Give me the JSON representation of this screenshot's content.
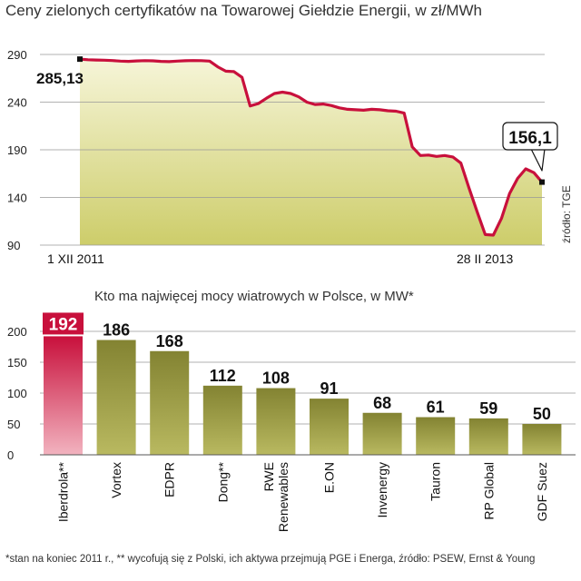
{
  "chart_data": [
    {
      "type": "area",
      "title": "Ceny zielonych certyfikatów na Towarowej Giełdzie Energii, w zł/MWh",
      "ylim": [
        90,
        290
      ],
      "yticks": [
        90,
        140,
        190,
        240,
        290
      ],
      "x_labels": {
        "start": "1 XII 2011",
        "end": "28 II 2013"
      },
      "source": "źródło: TGE",
      "start_value": 285.13,
      "end_value": 156.1,
      "start_label": "285,13",
      "end_label": "156,1",
      "values": [
        285.13,
        284.5,
        284.2,
        284.0,
        283.6,
        283.0,
        282.8,
        283.2,
        283.5,
        283.3,
        282.8,
        282.5,
        283.0,
        283.4,
        283.6,
        283.5,
        283.0,
        277.0,
        272.5,
        272.0,
        266.0,
        236.0,
        238.5,
        244.0,
        249.0,
        250.5,
        249.0,
        245.5,
        240.0,
        237.5,
        238.0,
        236.5,
        234.0,
        232.5,
        232.0,
        231.5,
        232.5,
        232.0,
        231.0,
        230.5,
        228.5,
        193.0,
        184.0,
        184.5,
        183.0,
        184.0,
        182.5,
        176.0,
        150.0,
        125.0,
        101.0,
        100.5,
        118.0,
        144.0,
        160.0,
        170.0,
        166.0,
        156.1
      ],
      "colors": {
        "line": "#c8103c",
        "fill_top": "#f4f2cf",
        "fill_bottom": "#cfcf6e"
      }
    },
    {
      "type": "bar",
      "title": "Kto ma najwięcej mocy wiatrowych w Polsce, w MW*",
      "ylim": [
        0,
        200
      ],
      "yticks": [
        0,
        50,
        100,
        150,
        200
      ],
      "categories": [
        "Iberdrola**",
        "Vortex",
        "EDPR",
        "Dong**",
        "RWE Renewables",
        "E.ON",
        "Invenergy",
        "Tauron",
        "RP Global",
        "GDF Suez"
      ],
      "category_lines": [
        [
          "Iberdrola**"
        ],
        [
          "Vortex"
        ],
        [
          "EDPR"
        ],
        [
          "Dong**"
        ],
        [
          "RWE",
          "Renewables"
        ],
        [
          "E.ON"
        ],
        [
          "Invenergy"
        ],
        [
          "Tauron"
        ],
        [
          "RP Global"
        ],
        [
          "GDF Suez"
        ]
      ],
      "values": [
        192,
        186,
        168,
        112,
        108,
        91,
        68,
        61,
        59,
        50
      ],
      "highlight_index": 0,
      "colors": {
        "bar": "#8a8a3a",
        "bar_light": "#b4b45a",
        "highlight": "#c8103c",
        "highlight_light": "#f0a8b4"
      }
    }
  ],
  "footnote": "*stan na koniec 2011 r., ** wycofują się z Polski, ich aktywa przejmują PGE i Energa,  źródło: PSEW, Ernst & Young"
}
